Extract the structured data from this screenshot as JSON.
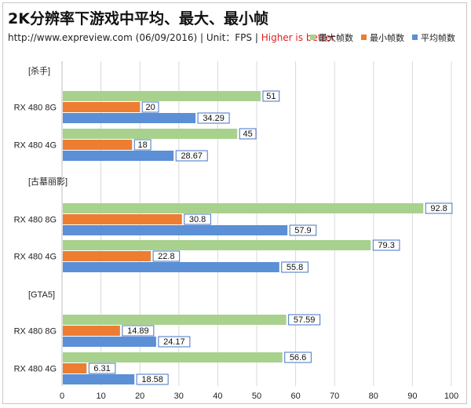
{
  "title": "2K分辨率下游戏中平均、最大、最小帧",
  "subtitle": {
    "prefix": "http://www.expreview.com (06/09/2016) | Unit：FPS | ",
    "highlight": "Higher is better"
  },
  "colors": {
    "max": "#a9d18e",
    "min": "#ed7d31",
    "avg": "#5b8fd6",
    "label_border": "#4472c4"
  },
  "chart_data": {
    "type": "bar",
    "orientation": "horizontal",
    "xlim": [
      0,
      100
    ],
    "xticks": [
      "0",
      "10",
      "20",
      "30",
      "40",
      "50",
      "60",
      "70",
      "80",
      "90",
      "100"
    ],
    "legend": [
      {
        "key": "max",
        "label": "最大帧数"
      },
      {
        "key": "min",
        "label": "最小帧数"
      },
      {
        "key": "avg",
        "label": "平均帧数"
      }
    ],
    "groups": [
      {
        "game": "[杀手]",
        "cards": [
          {
            "name": "RX 480 8G",
            "max": "51",
            "min": "20",
            "avg": "34.29"
          },
          {
            "name": "RX 480 4G",
            "max": "45",
            "min": "18",
            "avg": "28.67"
          }
        ]
      },
      {
        "game": "[古墓丽影]",
        "cards": [
          {
            "name": "RX 480 8G",
            "max": "92.8",
            "min": "30.8",
            "avg": "57.9"
          },
          {
            "name": "RX 480 4G",
            "max": "79.3",
            "min": "22.8",
            "avg": "55.8"
          }
        ]
      },
      {
        "game": "[GTA5]",
        "cards": [
          {
            "name": "RX 480 8G",
            "max": "57.59",
            "min": "14.89",
            "avg": "24.17"
          },
          {
            "name": "RX 480 4G",
            "max": "56.6",
            "min": "6.31",
            "avg": "18.58"
          }
        ]
      }
    ]
  }
}
